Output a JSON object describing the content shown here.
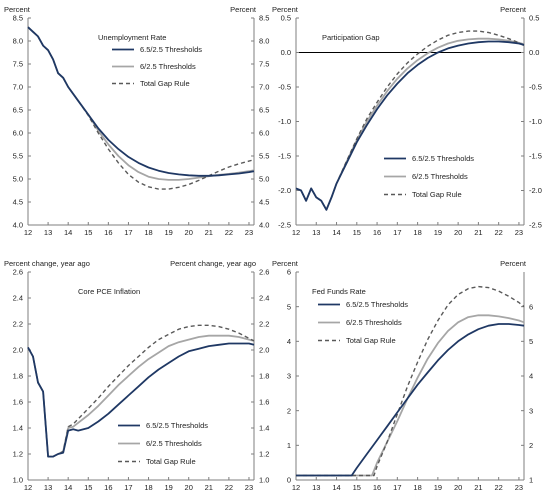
{
  "colors": {
    "series_a": "#1f3864",
    "series_b": "#a6a6a6",
    "series_c": "#595959",
    "axis": "#7f7f7f"
  },
  "chart_data": [
    {
      "type": "line",
      "title": "Unemployment Rate",
      "left_unit": "Percent",
      "right_unit": "Percent",
      "legend_position": "top-right",
      "xlim": [
        12,
        23.25
      ],
      "ylim": [
        4.0,
        8.5
      ],
      "x_ticks": [
        12,
        13,
        14,
        15,
        16,
        17,
        18,
        19,
        20,
        21,
        22,
        23
      ],
      "x_tick_labels": [
        "12",
        "13",
        "14",
        "15",
        "16",
        "17",
        "18",
        "19",
        "20",
        "21",
        "22",
        "23"
      ],
      "y_ticks": [
        4.0,
        4.5,
        5.0,
        5.5,
        6.0,
        6.5,
        7.0,
        7.5,
        8.0,
        8.5
      ],
      "y_tick_labels": [
        "4.0",
        "4.5",
        "5.0",
        "5.5",
        "6.0",
        "6.5",
        "7.0",
        "7.5",
        "8.0",
        "8.5"
      ],
      "zero_line": false,
      "series": [
        {
          "name": "6.5/2.5 Thresholds",
          "style": "solid-dark",
          "x": [
            12,
            12.25,
            12.5,
            12.75,
            13,
            13.25,
            13.5,
            13.75,
            14,
            14.5,
            15,
            15.5,
            16,
            16.5,
            17,
            17.5,
            18,
            18.5,
            19,
            19.5,
            20,
            20.5,
            21,
            21.5,
            22,
            22.5,
            23,
            23.25
          ],
          "y": [
            8.3,
            8.2,
            8.1,
            7.9,
            7.8,
            7.6,
            7.3,
            7.2,
            7.0,
            6.7,
            6.4,
            6.1,
            5.85,
            5.65,
            5.48,
            5.35,
            5.25,
            5.18,
            5.13,
            5.1,
            5.08,
            5.07,
            5.07,
            5.08,
            5.1,
            5.12,
            5.15,
            5.17
          ]
        },
        {
          "name": "6/2.5 Thresholds",
          "style": "solid-light",
          "x": [
            12,
            12.25,
            12.5,
            12.75,
            13,
            13.25,
            13.5,
            13.75,
            14,
            14.5,
            15,
            15.5,
            16,
            16.5,
            17,
            17.5,
            18,
            18.5,
            19,
            19.5,
            20,
            20.5,
            21,
            21.5,
            22,
            22.5,
            23,
            23.25
          ],
          "y": [
            8.3,
            8.2,
            8.1,
            7.9,
            7.8,
            7.6,
            7.3,
            7.2,
            7.0,
            6.7,
            6.4,
            6.05,
            5.75,
            5.5,
            5.3,
            5.15,
            5.05,
            5.0,
            4.98,
            4.98,
            5.0,
            5.03,
            5.06,
            5.09,
            5.11,
            5.14,
            5.17,
            5.19
          ]
        },
        {
          "name": "Total Gap Rule",
          "style": "dashed",
          "x": [
            12,
            12.25,
            12.5,
            12.75,
            13,
            13.25,
            13.5,
            13.75,
            14,
            14.5,
            15,
            15.5,
            16,
            16.5,
            17,
            17.5,
            18,
            18.5,
            19,
            19.5,
            20,
            20.5,
            21,
            21.5,
            22,
            22.5,
            23,
            23.25
          ],
          "y": [
            8.3,
            8.2,
            8.1,
            7.9,
            7.8,
            7.6,
            7.3,
            7.2,
            7.0,
            6.7,
            6.38,
            6.0,
            5.65,
            5.35,
            5.1,
            4.93,
            4.83,
            4.78,
            4.78,
            4.82,
            4.88,
            4.97,
            5.07,
            5.17,
            5.26,
            5.33,
            5.39,
            5.42
          ]
        }
      ]
    },
    {
      "type": "line",
      "title": "Participation Gap",
      "left_unit": "Percent",
      "right_unit": "Percent",
      "legend_position": "bottom-right",
      "xlim": [
        12,
        23.25
      ],
      "ylim": [
        -2.5,
        0.5
      ],
      "x_ticks": [
        12,
        13,
        14,
        15,
        16,
        17,
        18,
        19,
        20,
        21,
        22,
        23
      ],
      "x_tick_labels": [
        "12",
        "13",
        "14",
        "15",
        "16",
        "17",
        "18",
        "19",
        "20",
        "21",
        "22",
        "23"
      ],
      "y_ticks": [
        -2.5,
        -2.0,
        -1.5,
        -1.0,
        -0.5,
        0.0,
        0.5
      ],
      "y_tick_labels": [
        "-2.5",
        "-2.0",
        "-1.5",
        "-1.0",
        "-0.5",
        "0.0",
        "0.5"
      ],
      "zero_line": true,
      "series": [
        {
          "name": "6.5/2.5 Thresholds",
          "style": "solid-dark",
          "x": [
            12,
            12.25,
            12.5,
            12.75,
            13,
            13.25,
            13.5,
            13.75,
            14,
            14.5,
            15,
            15.5,
            16,
            16.5,
            17,
            17.5,
            18,
            18.5,
            19,
            19.5,
            20,
            20.5,
            21,
            21.5,
            22,
            22.5,
            23,
            23.25
          ],
          "y": [
            -1.97,
            -2.0,
            -2.15,
            -1.97,
            -2.1,
            -2.15,
            -2.28,
            -2.1,
            -1.9,
            -1.6,
            -1.3,
            -1.05,
            -0.82,
            -0.62,
            -0.45,
            -0.3,
            -0.18,
            -0.08,
            0.0,
            0.06,
            0.1,
            0.13,
            0.15,
            0.16,
            0.16,
            0.15,
            0.13,
            0.11
          ]
        },
        {
          "name": "6/2.5 Thresholds",
          "style": "solid-light",
          "x": [
            12,
            12.25,
            12.5,
            12.75,
            13,
            13.25,
            13.5,
            13.75,
            14,
            14.5,
            15,
            15.5,
            16,
            16.5,
            17,
            17.5,
            18,
            18.5,
            19,
            19.5,
            20,
            20.5,
            21,
            21.5,
            22,
            22.5,
            23,
            23.25
          ],
          "y": [
            -1.97,
            -2.0,
            -2.15,
            -1.97,
            -2.1,
            -2.15,
            -2.28,
            -2.1,
            -1.9,
            -1.58,
            -1.27,
            -1.0,
            -0.77,
            -0.56,
            -0.38,
            -0.23,
            -0.11,
            -0.01,
            0.07,
            0.13,
            0.17,
            0.19,
            0.2,
            0.2,
            0.19,
            0.17,
            0.14,
            0.12
          ]
        },
        {
          "name": "Total Gap Rule",
          "style": "dashed",
          "x": [
            12,
            12.25,
            12.5,
            12.75,
            13,
            13.25,
            13.5,
            13.75,
            14,
            14.5,
            15,
            15.5,
            16,
            16.5,
            17,
            17.5,
            18,
            18.5,
            19,
            19.5,
            20,
            20.5,
            21,
            21.5,
            22,
            22.5,
            23,
            23.25
          ],
          "y": [
            -1.97,
            -2.0,
            -2.15,
            -1.97,
            -2.1,
            -2.15,
            -2.28,
            -2.1,
            -1.9,
            -1.57,
            -1.25,
            -0.96,
            -0.72,
            -0.5,
            -0.31,
            -0.15,
            -0.02,
            0.09,
            0.18,
            0.25,
            0.29,
            0.31,
            0.31,
            0.29,
            0.25,
            0.2,
            0.14,
            0.1
          ]
        }
      ]
    },
    {
      "type": "line",
      "title": "Core PCE Inflation",
      "left_unit": "Percent change, year ago",
      "right_unit": "Percent change, year ago",
      "legend_position": "bottom-right",
      "xlim": [
        12,
        23.25
      ],
      "ylim": [
        1.0,
        2.6
      ],
      "x_ticks": [
        12,
        13,
        14,
        15,
        16,
        17,
        18,
        19,
        20,
        21,
        22,
        23
      ],
      "x_tick_labels": [
        "12",
        "13",
        "14",
        "15",
        "16",
        "17",
        "18",
        "19",
        "20",
        "21",
        "22",
        "23"
      ],
      "y_ticks": [
        1.0,
        1.2,
        1.4,
        1.6,
        1.8,
        2.0,
        2.2,
        2.4,
        2.6
      ],
      "y_tick_labels": [
        "1.0",
        "1.2",
        "1.4",
        "1.6",
        "1.8",
        "2.0",
        "2.2",
        "2.4",
        "2.6"
      ],
      "zero_line": false,
      "series": [
        {
          "name": "6.5/2.5 Thresholds",
          "style": "solid-dark",
          "x": [
            12,
            12.25,
            12.5,
            12.75,
            13,
            13.25,
            13.5,
            13.75,
            14,
            14.25,
            14.5,
            15,
            15.5,
            16,
            16.5,
            17,
            17.5,
            18,
            18.5,
            19,
            19.5,
            20,
            20.5,
            21,
            21.5,
            22,
            22.5,
            23,
            23.25
          ],
          "y": [
            2.02,
            1.95,
            1.75,
            1.68,
            1.18,
            1.18,
            1.2,
            1.21,
            1.38,
            1.39,
            1.38,
            1.4,
            1.45,
            1.51,
            1.58,
            1.65,
            1.72,
            1.79,
            1.85,
            1.9,
            1.95,
            1.99,
            2.01,
            2.03,
            2.04,
            2.05,
            2.05,
            2.05,
            2.04
          ]
        },
        {
          "name": "6/2.5 Thresholds",
          "style": "solid-light",
          "x": [
            12,
            12.25,
            12.5,
            12.75,
            13,
            13.25,
            13.5,
            13.75,
            14,
            14.25,
            14.5,
            15,
            15.5,
            16,
            16.5,
            17,
            17.5,
            18,
            18.5,
            19,
            19.5,
            20,
            20.5,
            21,
            21.5,
            22,
            22.5,
            23,
            23.25
          ],
          "y": [
            2.02,
            1.95,
            1.75,
            1.68,
            1.18,
            1.18,
            1.2,
            1.22,
            1.4,
            1.41,
            1.44,
            1.5,
            1.57,
            1.65,
            1.73,
            1.8,
            1.87,
            1.93,
            1.98,
            2.03,
            2.06,
            2.08,
            2.1,
            2.11,
            2.11,
            2.11,
            2.1,
            2.08,
            2.07
          ]
        },
        {
          "name": "Total Gap Rule",
          "style": "dashed",
          "x": [
            12,
            12.25,
            12.5,
            12.75,
            13,
            13.25,
            13.5,
            13.75,
            14,
            14.25,
            14.5,
            15,
            15.5,
            16,
            16.5,
            17,
            17.5,
            18,
            18.5,
            19,
            19.5,
            20,
            20.5,
            21,
            21.5,
            22,
            22.5,
            23,
            23.25
          ],
          "y": [
            2.02,
            1.95,
            1.75,
            1.68,
            1.18,
            1.18,
            1.2,
            1.22,
            1.41,
            1.43,
            1.47,
            1.55,
            1.63,
            1.72,
            1.8,
            1.88,
            1.95,
            2.02,
            2.08,
            2.12,
            2.16,
            2.18,
            2.19,
            2.19,
            2.18,
            2.16,
            2.13,
            2.09,
            2.07
          ]
        }
      ]
    },
    {
      "type": "line",
      "title": "Fed Funds Rate",
      "left_unit": "Percent",
      "right_unit": "Percent",
      "legend_position": "top-left",
      "xlim": [
        12,
        23.25
      ],
      "ylim": [
        0,
        6
      ],
      "y_axis_right_offset": 1,
      "x_ticks": [
        12,
        13,
        14,
        15,
        16,
        17,
        18,
        19,
        20,
        21,
        22,
        23
      ],
      "x_tick_labels": [
        "12",
        "13",
        "14",
        "15",
        "16",
        "17",
        "18",
        "19",
        "20",
        "21",
        "22",
        "23"
      ],
      "y_ticks": [
        0,
        1,
        2,
        3,
        4,
        5,
        6
      ],
      "y_tick_labels": [
        "0",
        "1",
        "2",
        "3",
        "4",
        "5",
        "6"
      ],
      "y_ticks_right": [
        1,
        2,
        3,
        4,
        5,
        6
      ],
      "y_tick_labels_right": [
        "1",
        "2",
        "3",
        "4",
        "5",
        "6"
      ],
      "zero_line": false,
      "series": [
        {
          "name": "6.5/2.5 Thresholds",
          "style": "solid-dark",
          "x": [
            12,
            13,
            14,
            14.75,
            15,
            15.5,
            16,
            16.5,
            17,
            17.5,
            18,
            18.5,
            19,
            19.5,
            20,
            20.5,
            21,
            21.5,
            22,
            22.5,
            23,
            23.25
          ],
          "y": [
            0.13,
            0.13,
            0.13,
            0.13,
            0.35,
            0.75,
            1.15,
            1.55,
            1.95,
            2.35,
            2.75,
            3.1,
            3.45,
            3.75,
            4.0,
            4.2,
            4.35,
            4.45,
            4.5,
            4.5,
            4.47,
            4.45
          ]
        },
        {
          "name": "6/2.5 Thresholds",
          "style": "solid-light",
          "x": [
            12,
            13,
            14,
            15,
            15.75,
            16,
            16.5,
            17,
            17.5,
            18,
            18.5,
            19,
            19.5,
            20,
            20.5,
            21,
            21.5,
            22,
            22.5,
            23,
            23.25
          ],
          "y": [
            0.13,
            0.13,
            0.13,
            0.13,
            0.13,
            0.5,
            1.1,
            1.7,
            2.35,
            2.95,
            3.5,
            3.95,
            4.3,
            4.55,
            4.7,
            4.75,
            4.75,
            4.72,
            4.67,
            4.6,
            4.55
          ]
        },
        {
          "name": "Total Gap Rule",
          "style": "dashed",
          "x": [
            12,
            13,
            14,
            15,
            15.85,
            16,
            16.5,
            17,
            17.5,
            18,
            18.5,
            19,
            19.5,
            20,
            20.5,
            21,
            21.5,
            22,
            22.5,
            23,
            23.25
          ],
          "y": [
            0.13,
            0.13,
            0.13,
            0.13,
            0.13,
            0.4,
            1.1,
            1.9,
            2.7,
            3.4,
            4.05,
            4.6,
            5.05,
            5.35,
            5.52,
            5.58,
            5.55,
            5.45,
            5.3,
            5.12,
            5.0
          ]
        }
      ]
    }
  ]
}
